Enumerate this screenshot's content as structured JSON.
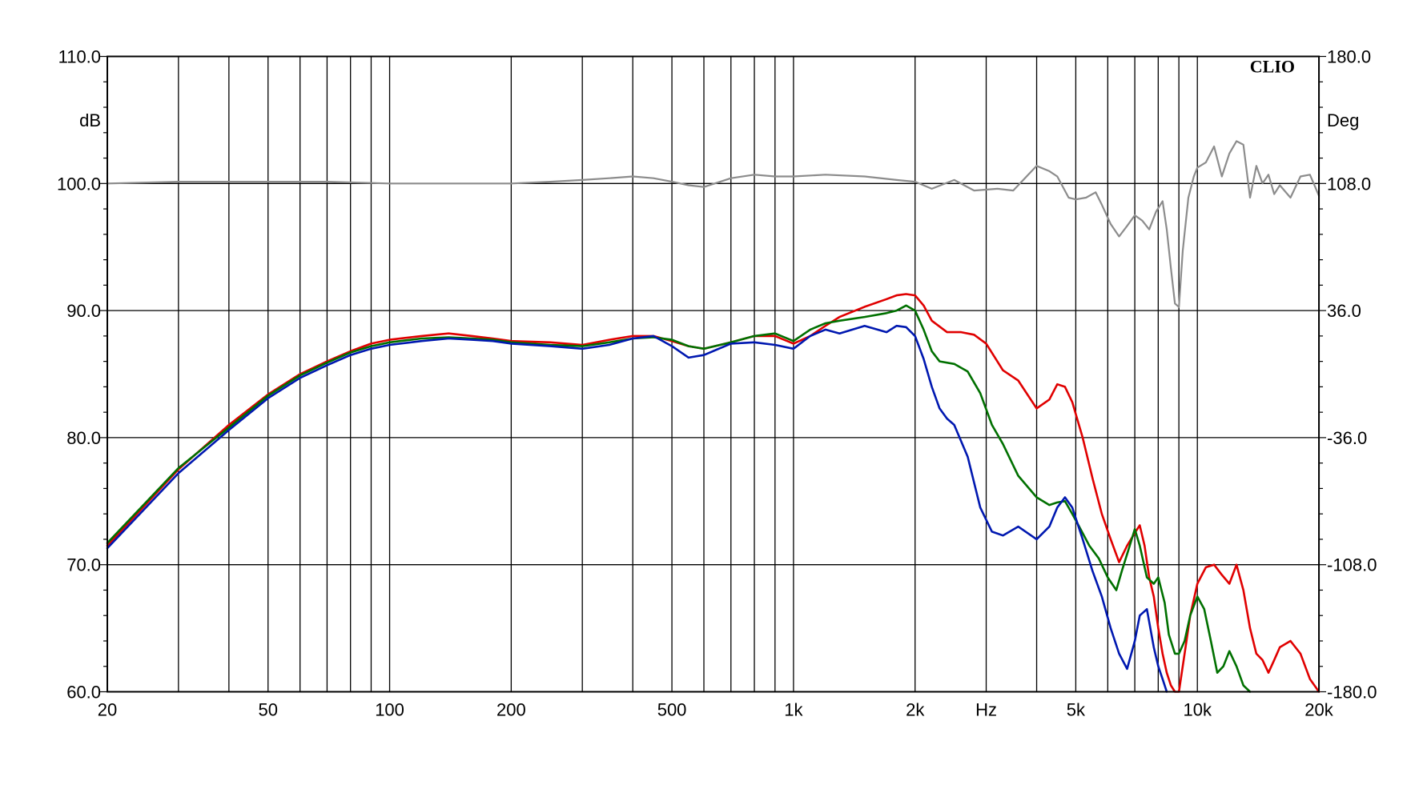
{
  "chart_data": {
    "type": "line",
    "brand": "CLIO",
    "xlabel": "Hz",
    "ylabel_left": "dB",
    "ylabel_right": "Deg",
    "x_scale": "log",
    "xlim": [
      20,
      20000
    ],
    "ylim_left": [
      60,
      110
    ],
    "ylim_right": [
      -180,
      180
    ],
    "grid": true,
    "x_ticks": [
      {
        "value": 20,
        "label": "20"
      },
      {
        "value": 50,
        "label": "50"
      },
      {
        "value": 100,
        "label": "100"
      },
      {
        "value": 200,
        "label": "200"
      },
      {
        "value": 500,
        "label": "500"
      },
      {
        "value": 1000,
        "label": "1k"
      },
      {
        "value": 2000,
        "label": "2k"
      },
      {
        "value": 5000,
        "label": "5k"
      },
      {
        "value": 10000,
        "label": "10k"
      },
      {
        "value": 20000,
        "label": "20k"
      }
    ],
    "x_unit_label_at": 3000,
    "y_ticks_left": [
      {
        "value": 110,
        "label": "110.0"
      },
      {
        "value": 100,
        "label": "100.0"
      },
      {
        "value": 90,
        "label": "90.0"
      },
      {
        "value": 80,
        "label": "80.0"
      },
      {
        "value": 70,
        "label": "70.0"
      },
      {
        "value": 60,
        "label": "60.0"
      }
    ],
    "y_ticks_right": [
      {
        "value": 180,
        "label": "180.0"
      },
      {
        "value": 108,
        "label": "108.0"
      },
      {
        "value": 36,
        "label": "36.0"
      },
      {
        "value": -36,
        "label": "-36.0"
      },
      {
        "value": -108,
        "label": "-108.0"
      },
      {
        "value": -180,
        "label": "-180.0"
      }
    ],
    "series": [
      {
        "id": "phase",
        "color": "#8c8c8c",
        "axis": "right",
        "x": [
          20,
          30,
          40,
          50,
          70,
          100,
          150,
          200,
          250,
          300,
          350,
          400,
          450,
          500,
          550,
          600,
          700,
          800,
          900,
          1000,
          1200,
          1500,
          1800,
          2000,
          2200,
          2500,
          2800,
          3200,
          3500,
          4000,
          4300,
          4500,
          4800,
          5000,
          5300,
          5600,
          5800,
          6100,
          6400,
          6700,
          7000,
          7300,
          7600,
          7900,
          8200,
          8400,
          8600,
          8800,
          9000,
          9200,
          9500,
          9800,
          10000,
          10500,
          11000,
          11500,
          12000,
          12500,
          13000,
          13500,
          14000,
          14500,
          15000,
          15500,
          16000,
          17000,
          18000,
          19000,
          20000
        ],
        "y": [
          108,
          109,
          109,
          109,
          109,
          108,
          108,
          108,
          109,
          110,
          111,
          112,
          111,
          109,
          107,
          106,
          111,
          113,
          112,
          112,
          113,
          112,
          110,
          109,
          105,
          110,
          104,
          105,
          104,
          118,
          115,
          112,
          100,
          99,
          100,
          103,
          96,
          85,
          78,
          84,
          90,
          87,
          82,
          92,
          98,
          82,
          60,
          40,
          38,
          70,
          100,
          112,
          117,
          120,
          129,
          112,
          125,
          132,
          130,
          100,
          118,
          108,
          113,
          102,
          107,
          100,
          112,
          113,
          101
        ]
      },
      {
        "id": "response-red",
        "color": "#e00000",
        "axis": "left",
        "x": [
          20,
          30,
          40,
          50,
          60,
          70,
          80,
          90,
          100,
          120,
          140,
          160,
          180,
          200,
          250,
          300,
          350,
          400,
          450,
          500,
          550,
          600,
          700,
          800,
          900,
          1000,
          1100,
          1200,
          1300,
          1500,
          1700,
          1800,
          1900,
          2000,
          2100,
          2200,
          2400,
          2600,
          2800,
          3000,
          3300,
          3600,
          4000,
          4300,
          4500,
          4700,
          4900,
          5200,
          5500,
          5800,
          6100,
          6400,
          6700,
          7000,
          7200,
          7400,
          7600,
          7800,
          8000,
          8200,
          8400,
          8600,
          8800,
          9000,
          9300,
          9600,
          10000,
          10500,
          11000,
          11500,
          12000,
          12500,
          13000,
          13500,
          14000,
          14500,
          15000,
          15500,
          16000,
          17000,
          18000,
          19000,
          20000
        ],
        "y": [
          71.5,
          77.5,
          81.0,
          83.4,
          85.0,
          86.0,
          86.8,
          87.4,
          87.7,
          88.0,
          88.2,
          88.0,
          87.8,
          87.6,
          87.5,
          87.3,
          87.7,
          88.0,
          88.0,
          87.6,
          87.2,
          87.0,
          87.5,
          88.0,
          88.0,
          87.4,
          88.0,
          88.8,
          89.5,
          90.3,
          90.9,
          91.2,
          91.3,
          91.2,
          90.4,
          89.2,
          88.3,
          88.3,
          88.1,
          87.4,
          85.3,
          84.5,
          82.3,
          83.0,
          84.2,
          84.0,
          82.8,
          80.0,
          76.8,
          74.0,
          72.0,
          70.2,
          71.5,
          72.5,
          73.1,
          71.5,
          69.0,
          67.5,
          65.0,
          63.0,
          61.5,
          60.5,
          60.0,
          60.0,
          63.0,
          66.0,
          68.5,
          69.8,
          70.0,
          69.2,
          68.5,
          70.0,
          68.0,
          65.0,
          63.0,
          62.5,
          61.5,
          62.5,
          63.5,
          64.0,
          63.0,
          61.0,
          60.0
        ]
      },
      {
        "id": "response-green",
        "color": "#007000",
        "axis": "left",
        "x": [
          20,
          30,
          40,
          50,
          60,
          70,
          80,
          90,
          100,
          120,
          140,
          160,
          180,
          200,
          250,
          300,
          350,
          400,
          450,
          500,
          550,
          600,
          700,
          800,
          900,
          1000,
          1100,
          1200,
          1300,
          1500,
          1700,
          1800,
          1900,
          2000,
          2100,
          2200,
          2300,
          2500,
          2700,
          2900,
          3100,
          3300,
          3600,
          4000,
          4300,
          4500,
          4700,
          4900,
          5100,
          5400,
          5700,
          6000,
          6300,
          6500,
          6800,
          7000,
          7200,
          7500,
          7800,
          8000,
          8300,
          8500,
          8800,
          9000,
          9300,
          9600,
          10000,
          10400,
          10800,
          11200,
          11600,
          12000,
          12500,
          13000,
          13500
        ],
        "y": [
          71.7,
          77.6,
          80.8,
          83.3,
          84.9,
          85.9,
          86.7,
          87.2,
          87.5,
          87.8,
          87.9,
          87.8,
          87.7,
          87.5,
          87.3,
          87.2,
          87.5,
          87.8,
          87.9,
          87.7,
          87.2,
          87.0,
          87.5,
          88.0,
          88.2,
          87.6,
          88.5,
          89.0,
          89.2,
          89.5,
          89.8,
          90.0,
          90.4,
          90.0,
          88.5,
          86.8,
          86.0,
          85.8,
          85.2,
          83.5,
          81.0,
          79.5,
          77.0,
          75.3,
          74.7,
          74.9,
          75.0,
          74.0,
          73.0,
          71.5,
          70.5,
          69.0,
          68.0,
          69.5,
          71.5,
          72.8,
          71.5,
          69.0,
          68.5,
          69.0,
          67.0,
          64.5,
          63.0,
          63.0,
          64.0,
          66.0,
          67.5,
          66.5,
          64.0,
          61.5,
          62.0,
          63.2,
          62.0,
          60.5,
          60.0
        ]
      },
      {
        "id": "response-blue",
        "color": "#0018b0",
        "axis": "left",
        "x": [
          20,
          30,
          40,
          50,
          60,
          70,
          80,
          90,
          100,
          120,
          140,
          160,
          180,
          200,
          250,
          300,
          350,
          400,
          450,
          500,
          550,
          600,
          700,
          800,
          900,
          1000,
          1100,
          1200,
          1300,
          1500,
          1700,
          1800,
          1900,
          2000,
          2100,
          2200,
          2300,
          2400,
          2500,
          2700,
          2900,
          3100,
          3300,
          3600,
          4000,
          4300,
          4500,
          4700,
          4900,
          5200,
          5500,
          5800,
          6100,
          6400,
          6700,
          7000,
          7200,
          7500,
          7800,
          8000,
          8200,
          8400
        ],
        "y": [
          71.3,
          77.2,
          80.6,
          83.1,
          84.7,
          85.7,
          86.5,
          87.0,
          87.3,
          87.6,
          87.8,
          87.7,
          87.6,
          87.4,
          87.2,
          87.0,
          87.3,
          87.8,
          88.0,
          87.2,
          86.3,
          86.5,
          87.4,
          87.5,
          87.3,
          87.0,
          88.0,
          88.5,
          88.2,
          88.8,
          88.3,
          88.8,
          88.7,
          88.0,
          86.2,
          84.0,
          82.3,
          81.5,
          81.0,
          78.5,
          74.5,
          72.6,
          72.3,
          73.0,
          72.0,
          73.0,
          74.5,
          75.3,
          74.5,
          72.0,
          69.5,
          67.5,
          65.0,
          63.0,
          61.8,
          64.0,
          66.0,
          66.5,
          63.5,
          62.0,
          61.0,
          60.0
        ]
      }
    ]
  }
}
